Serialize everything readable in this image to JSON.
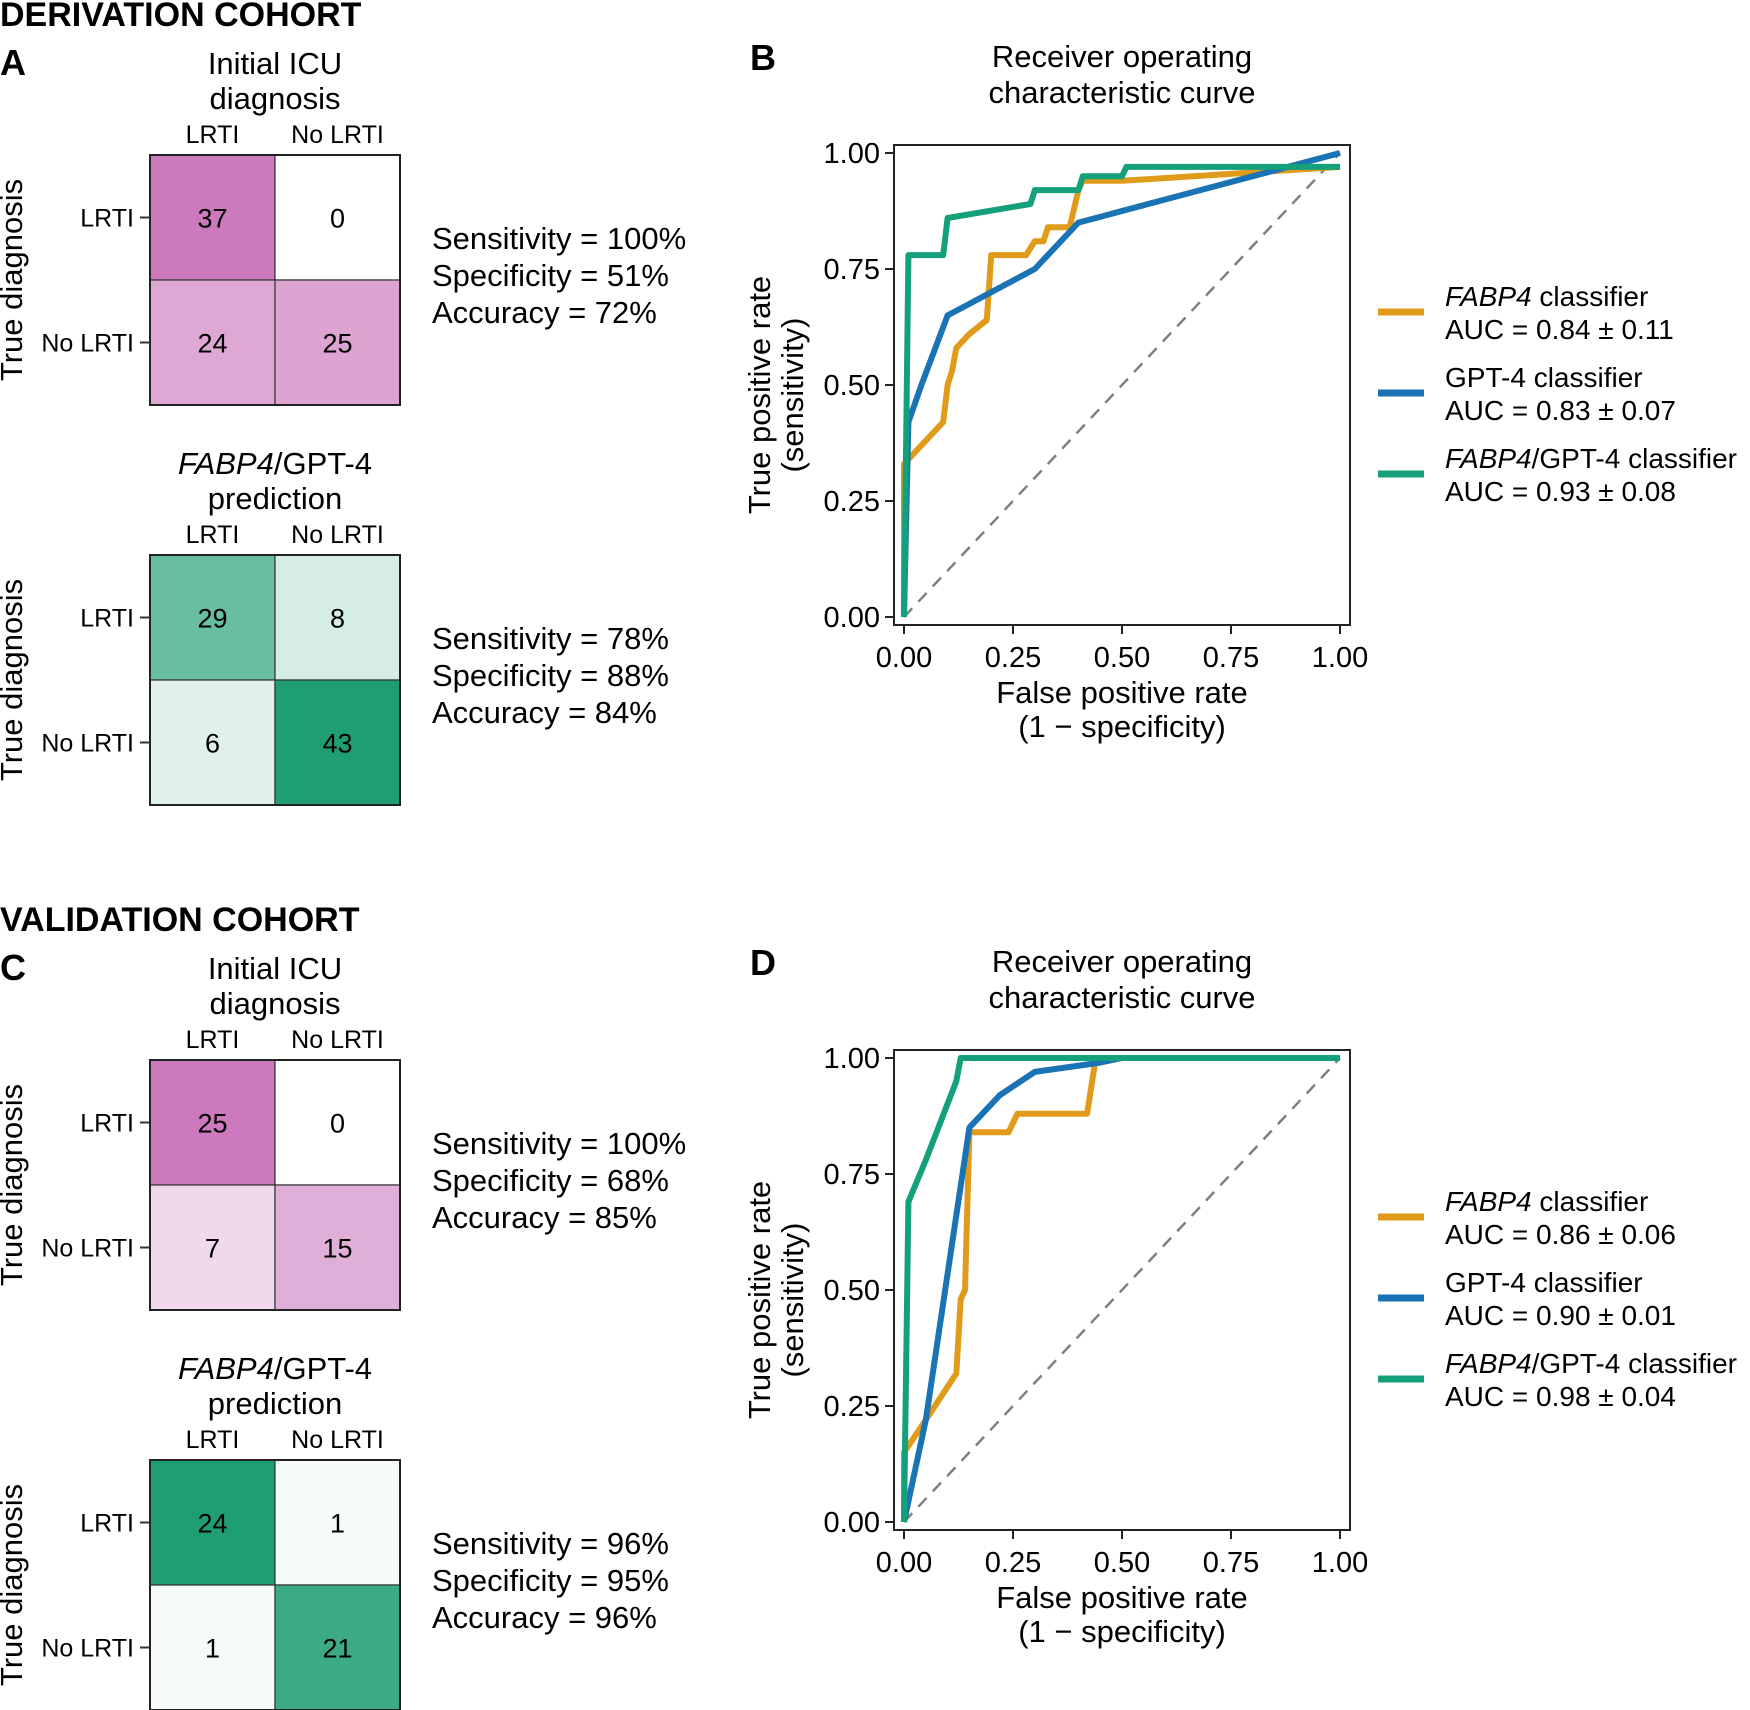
{
  "sections": [
    {
      "id": "derivation",
      "cohort_label": "DERIVATION COHORT",
      "matrices": [
        {
          "panel": "A",
          "title_parts": [
            {
              "text": "Initial ICU",
              "italic": false
            }
          ],
          "title_line2": "diagnosis",
          "col_labels": [
            "LRTI",
            "No LRTI"
          ],
          "row_labels": [
            "LRTI",
            "No LRTI"
          ],
          "ylabel": "True diagnosis",
          "values": [
            [
              37,
              0
            ],
            [
              24,
              25
            ]
          ],
          "palette": "magenta",
          "stats": [
            "Sensitivity = 100%",
            "Specificity = 51%",
            "Accuracy = 72%"
          ]
        },
        {
          "panel": "",
          "title_parts": [
            {
              "text": "FABP4",
              "italic": true
            },
            {
              "text": "/GPT-4",
              "italic": false
            }
          ],
          "title_line2": "prediction",
          "col_labels": [
            "LRTI",
            "No LRTI"
          ],
          "row_labels": [
            "LRTI",
            "No LRTI"
          ],
          "ylabel": "True diagnosis",
          "values": [
            [
              29,
              8
            ],
            [
              6,
              43
            ]
          ],
          "palette": "green",
          "stats": [
            "Sensitivity = 78%",
            "Specificity = 88%",
            "Accuracy = 84%"
          ]
        }
      ],
      "roc_panel": "B"
    },
    {
      "id": "validation",
      "cohort_label": "VALIDATION COHORT",
      "matrices": [
        {
          "panel": "C",
          "title_parts": [
            {
              "text": "Initial ICU",
              "italic": false
            }
          ],
          "title_line2": "diagnosis",
          "col_labels": [
            "LRTI",
            "No LRTI"
          ],
          "row_labels": [
            "LRTI",
            "No LRTI"
          ],
          "ylabel": "True diagnosis",
          "values": [
            [
              25,
              0
            ],
            [
              7,
              15
            ]
          ],
          "palette": "magenta",
          "stats": [
            "Sensitivity = 100%",
            "Specificity = 68%",
            "Accuracy = 85%"
          ]
        },
        {
          "panel": "",
          "title_parts": [
            {
              "text": "FABP4",
              "italic": true
            },
            {
              "text": "/GPT-4",
              "italic": false
            }
          ],
          "title_line2": "prediction",
          "col_labels": [
            "LRTI",
            "No LRTI"
          ],
          "row_labels": [
            "LRTI",
            "No LRTI"
          ],
          "ylabel": "True diagnosis",
          "values": [
            [
              24,
              1
            ],
            [
              1,
              21
            ]
          ],
          "palette": "green",
          "stats": [
            "Sensitivity = 96%",
            "Specificity = 95%",
            "Accuracy = 96%"
          ]
        }
      ],
      "roc_panel": "D"
    }
  ],
  "colors": {
    "magenta_max": "#cc79bd",
    "green_max": "#1f9e73",
    "fabp4": "#e09b1b",
    "gpt4": "#1a73b4",
    "combined": "#14a07a",
    "diagonal": "#808080"
  },
  "chart_data": [
    {
      "type": "line",
      "panel": "B",
      "title": [
        "Receiver operating",
        "characteristic curve"
      ],
      "xlabel": [
        "False positive rate",
        "(1 − specificity)"
      ],
      "ylabel": [
        "True positive rate",
        "(sensitivity)"
      ],
      "xlim": [
        0,
        1
      ],
      "ylim": [
        0,
        1
      ],
      "xticks": [
        "0.00",
        "0.25",
        "0.50",
        "0.75",
        "1.00"
      ],
      "yticks": [
        "0.00",
        "0.25",
        "0.50",
        "0.75",
        "1.00"
      ],
      "legend_position": "right",
      "series": [
        {
          "name_parts": [
            {
              "text": "FABP4",
              "italic": true
            },
            {
              "text": " classifier",
              "italic": false
            }
          ],
          "auc_label": "AUC = 0.84 ± 0.11",
          "color_key": "fabp4",
          "points": [
            [
              0,
              0
            ],
            [
              0,
              0.33
            ],
            [
              0.09,
              0.42
            ],
            [
              0.1,
              0.5
            ],
            [
              0.11,
              0.53
            ],
            [
              0.12,
              0.58
            ],
            [
              0.15,
              0.61
            ],
            [
              0.19,
              0.64
            ],
            [
              0.2,
              0.78
            ],
            [
              0.28,
              0.78
            ],
            [
              0.3,
              0.81
            ],
            [
              0.32,
              0.81
            ],
            [
              0.33,
              0.84
            ],
            [
              0.38,
              0.84
            ],
            [
              0.4,
              0.92
            ],
            [
              0.41,
              0.94
            ],
            [
              0.5,
              0.94
            ],
            [
              1.0,
              0.97
            ]
          ]
        },
        {
          "name_parts": [
            {
              "text": "GPT-4 classifier",
              "italic": false
            }
          ],
          "auc_label": "AUC = 0.83 ± 0.07",
          "color_key": "gpt4",
          "points": [
            [
              0,
              0
            ],
            [
              0.01,
              0.42
            ],
            [
              0.04,
              0.5
            ],
            [
              0.1,
              0.65
            ],
            [
              0.16,
              0.68
            ],
            [
              0.2,
              0.7
            ],
            [
              0.3,
              0.75
            ],
            [
              0.4,
              0.85
            ],
            [
              0.6,
              0.9
            ],
            [
              1.0,
              1.0
            ]
          ]
        },
        {
          "name_parts": [
            {
              "text": "FABP4",
              "italic": true
            },
            {
              "text": "/GPT-4 classifier",
              "italic": false
            }
          ],
          "auc_label": "AUC = 0.93 ± 0.08",
          "color_key": "combined",
          "points": [
            [
              0,
              0
            ],
            [
              0.01,
              0.78
            ],
            [
              0.09,
              0.78
            ],
            [
              0.1,
              0.86
            ],
            [
              0.29,
              0.89
            ],
            [
              0.3,
              0.92
            ],
            [
              0.4,
              0.92
            ],
            [
              0.41,
              0.95
            ],
            [
              0.5,
              0.95
            ],
            [
              0.51,
              0.97
            ],
            [
              1.0,
              0.97
            ]
          ]
        }
      ]
    },
    {
      "type": "line",
      "panel": "D",
      "title": [
        "Receiver operating",
        "characteristic curve"
      ],
      "xlabel": [
        "False positive rate",
        "(1 − specificity)"
      ],
      "ylabel": [
        "True positive rate",
        "(sensitivity)"
      ],
      "xlim": [
        0,
        1
      ],
      "ylim": [
        0,
        1
      ],
      "xticks": [
        "0.00",
        "0.25",
        "0.50",
        "0.75",
        "1.00"
      ],
      "yticks": [
        "0.00",
        "0.25",
        "0.50",
        "0.75",
        "1.00"
      ],
      "legend_position": "right",
      "series": [
        {
          "name_parts": [
            {
              "text": "FABP4",
              "italic": true
            },
            {
              "text": " classifier",
              "italic": false
            }
          ],
          "auc_label": "AUC = 0.86 ± 0.06",
          "color_key": "fabp4",
          "points": [
            [
              0,
              0
            ],
            [
              0,
              0.15
            ],
            [
              0.05,
              0.22
            ],
            [
              0.12,
              0.32
            ],
            [
              0.13,
              0.48
            ],
            [
              0.14,
              0.5
            ],
            [
              0.15,
              0.84
            ],
            [
              0.24,
              0.84
            ],
            [
              0.26,
              0.88
            ],
            [
              0.42,
              0.88
            ],
            [
              0.44,
              1.0
            ],
            [
              1.0,
              1.0
            ]
          ]
        },
        {
          "name_parts": [
            {
              "text": "GPT-4 classifier",
              "italic": false
            }
          ],
          "auc_label": "AUC = 0.90 ± 0.01",
          "color_key": "gpt4",
          "points": [
            [
              0,
              0
            ],
            [
              0.05,
              0.22
            ],
            [
              0.15,
              0.85
            ],
            [
              0.22,
              0.92
            ],
            [
              0.3,
              0.97
            ],
            [
              0.45,
              0.99
            ],
            [
              0.5,
              1.0
            ],
            [
              1.0,
              1.0
            ]
          ]
        },
        {
          "name_parts": [
            {
              "text": "FABP4",
              "italic": true
            },
            {
              "text": "/GPT-4 classifier",
              "italic": false
            }
          ],
          "auc_label": "AUC = 0.98 ± 0.04",
          "color_key": "combined",
          "points": [
            [
              0,
              0
            ],
            [
              0.01,
              0.69
            ],
            [
              0.05,
              0.78
            ],
            [
              0.12,
              0.95
            ],
            [
              0.13,
              1.0
            ],
            [
              1.0,
              1.0
            ]
          ]
        }
      ]
    }
  ]
}
